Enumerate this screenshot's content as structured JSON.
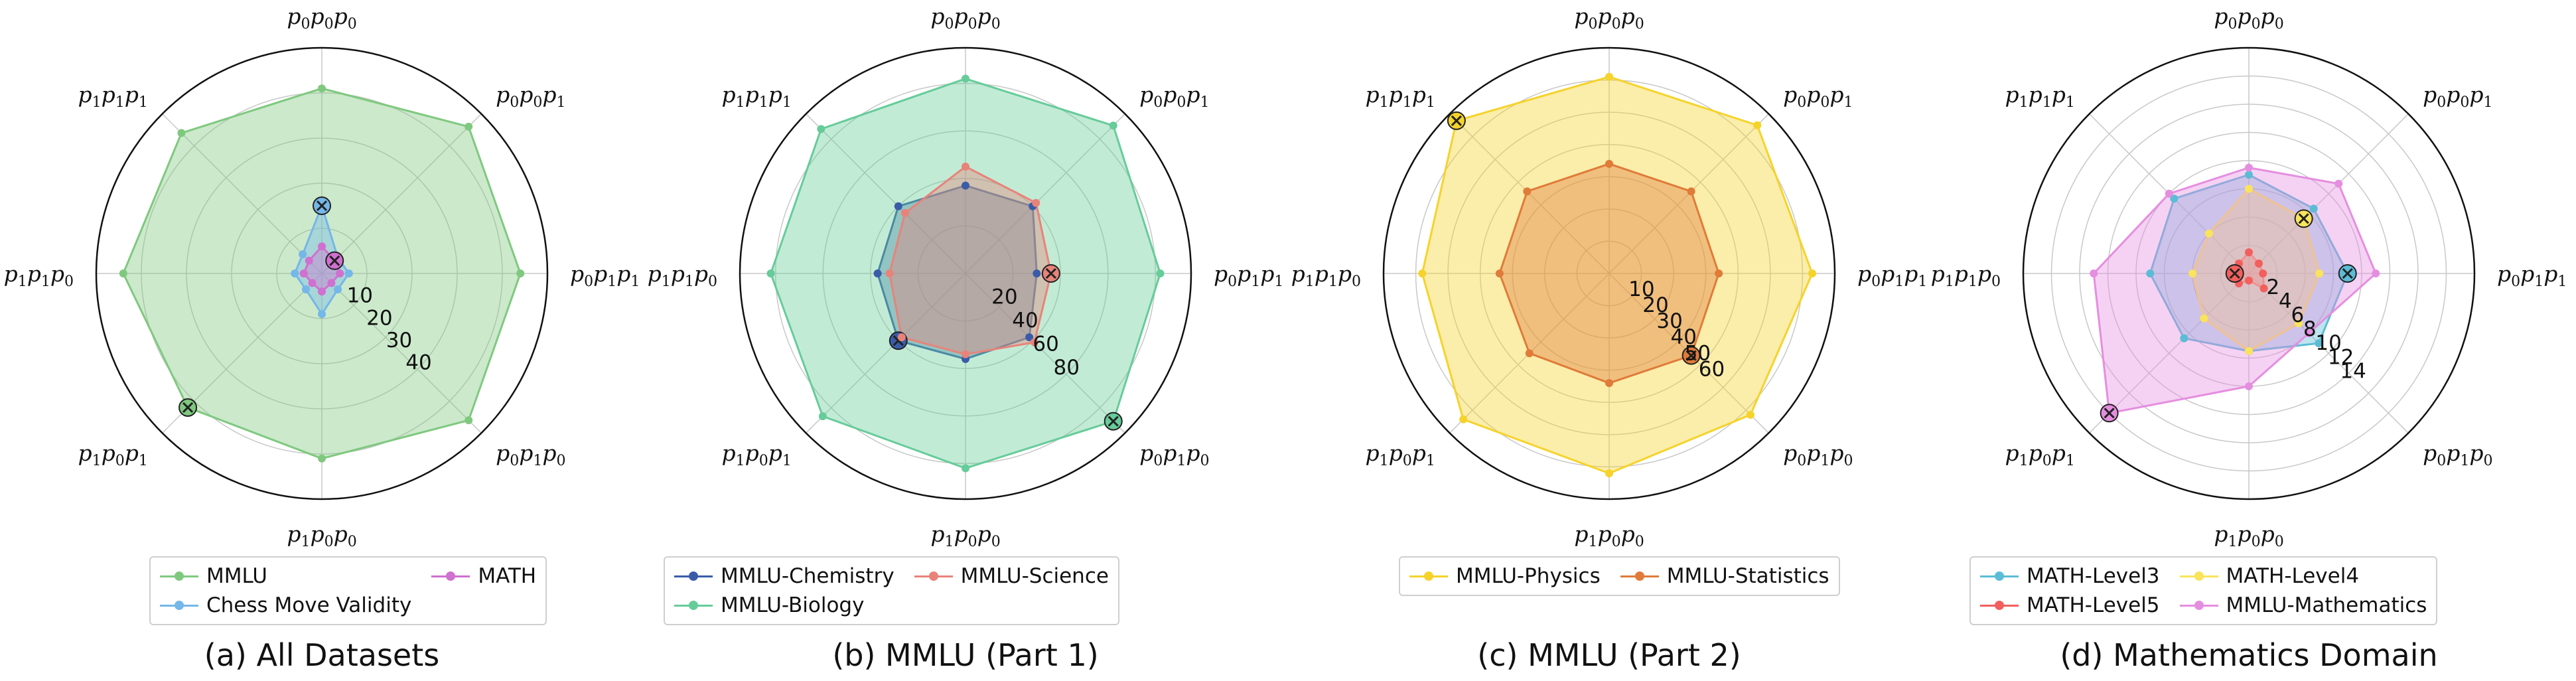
{
  "chart_data": [
    {
      "type": "radar",
      "caption": "(a) All Datasets",
      "axes": [
        "p_0p_0p_0",
        "p_0p_0p_1",
        "p_0p_1p_1",
        "p_0p_1p_0",
        "p_1p_0p_0",
        "p_1p_0p_1",
        "p_1p_1p_0",
        "p_1p_1p_1"
      ],
      "rmax": 50,
      "rticks": [
        10,
        20,
        30,
        40
      ],
      "grid": true,
      "legend": {
        "placement": "bottom",
        "columns": 2
      },
      "series": [
        {
          "name": "MMLU",
          "color": "#7fc97f",
          "values": [
            41,
            46,
            44,
            46,
            41,
            42,
            44,
            44
          ],
          "marker_axis": 5
        },
        {
          "name": "Chess Move Validity",
          "color": "#74b7e8",
          "values": [
            15,
            5,
            6,
            5,
            9,
            5,
            6,
            6
          ],
          "marker_axis": 0
        },
        {
          "name": "MATH",
          "color": "#d070d0",
          "values": [
            6,
            4,
            4,
            3,
            4,
            3,
            4,
            4
          ],
          "marker_axis": 1
        }
      ]
    },
    {
      "type": "radar",
      "caption": "(b) MMLU (Part 1)",
      "axes": [
        "p_0p_0p_0",
        "p_0p_0p_1",
        "p_0p_1p_1",
        "p_0p_1p_0",
        "p_1p_0p_0",
        "p_1p_0p_1",
        "p_1p_1p_0",
        "p_1p_1p_1"
      ],
      "rmax": 95,
      "rticks": [
        20,
        40,
        60,
        80
      ],
      "grid": true,
      "legend": {
        "placement": "bottom",
        "columns": 2
      },
      "series": [
        {
          "name": "MMLU-Chemistry",
          "color": "#3a5ca8",
          "values": [
            37,
            40,
            30,
            38,
            36,
            40,
            37,
            40
          ],
          "marker_axis": 5
        },
        {
          "name": "MMLU-Biology",
          "color": "#66cc99",
          "values": [
            82,
            88,
            82,
            88,
            82,
            85,
            82,
            86
          ],
          "marker_axis": 3
        },
        {
          "name": "MMLU-Science",
          "color": "#e8837a",
          "values": [
            45,
            42,
            36,
            41,
            34,
            38,
            32,
            36
          ],
          "marker_axis": 2
        }
      ]
    },
    {
      "type": "radar",
      "caption": "(c) MMLU (Part 2)",
      "axes": [
        "p_0p_0p_0",
        "p_0p_0p_1",
        "p_0p_1p_1",
        "p_0p_1p_0",
        "p_1p_0p_0",
        "p_1p_0p_1",
        "p_1p_1p_0",
        "p_1p_1p_1"
      ],
      "rmax": 70,
      "rticks": [
        10,
        20,
        30,
        40,
        50,
        60
      ],
      "grid": true,
      "legend": {
        "placement": "bottom",
        "columns": 2
      },
      "series": [
        {
          "name": "MMLU-Physics",
          "color": "#f5d32b",
          "values": [
            61,
            65,
            63,
            62,
            62,
            64,
            58,
            67
          ],
          "marker_axis": 7
        },
        {
          "name": "MMLU-Statistics",
          "color": "#e07b39",
          "values": [
            34,
            36,
            34,
            36,
            34,
            35,
            34,
            36
          ],
          "marker_axis": 3
        }
      ]
    },
    {
      "type": "radar",
      "caption": "(d) Mathematics Domain",
      "axes": [
        "p_0p_0p_0",
        "p_0p_0p_1",
        "p_0p_1p_1",
        "p_0p_1p_0",
        "p_1p_0p_0",
        "p_1p_0p_1",
        "p_1p_1p_0",
        "p_1p_1p_1"
      ],
      "rmax": 16,
      "rticks": [
        2,
        4,
        6,
        8,
        10,
        12,
        14
      ],
      "grid": true,
      "legend": {
        "placement": "bottom",
        "columns": 2
      },
      "series": [
        {
          "name": "MATH-Level3",
          "color": "#5bbcd6",
          "values": [
            7.0,
            6.5,
            7.0,
            7.0,
            5.5,
            6.5,
            7.0,
            7.5
          ],
          "marker_axis": 2
        },
        {
          "name": "MATH-Level5",
          "color": "#f25f5c",
          "values": [
            1.5,
            1.0,
            1.0,
            1.5,
            0.5,
            1.0,
            1.0,
            1.0
          ],
          "marker_axis": 6
        },
        {
          "name": "MATH-Level4",
          "color": "#f9e45b",
          "values": [
            6.0,
            5.5,
            5.0,
            5.0,
            5.5,
            4.5,
            4.0,
            4.0
          ],
          "marker_axis": 1
        },
        {
          "name": "MMLU-Mathematics",
          "color": "#e58ee0",
          "values": [
            7.5,
            9.0,
            9.0,
            6.0,
            8.0,
            14.0,
            11.0,
            8.0
          ],
          "marker_axis": 5
        }
      ]
    }
  ]
}
